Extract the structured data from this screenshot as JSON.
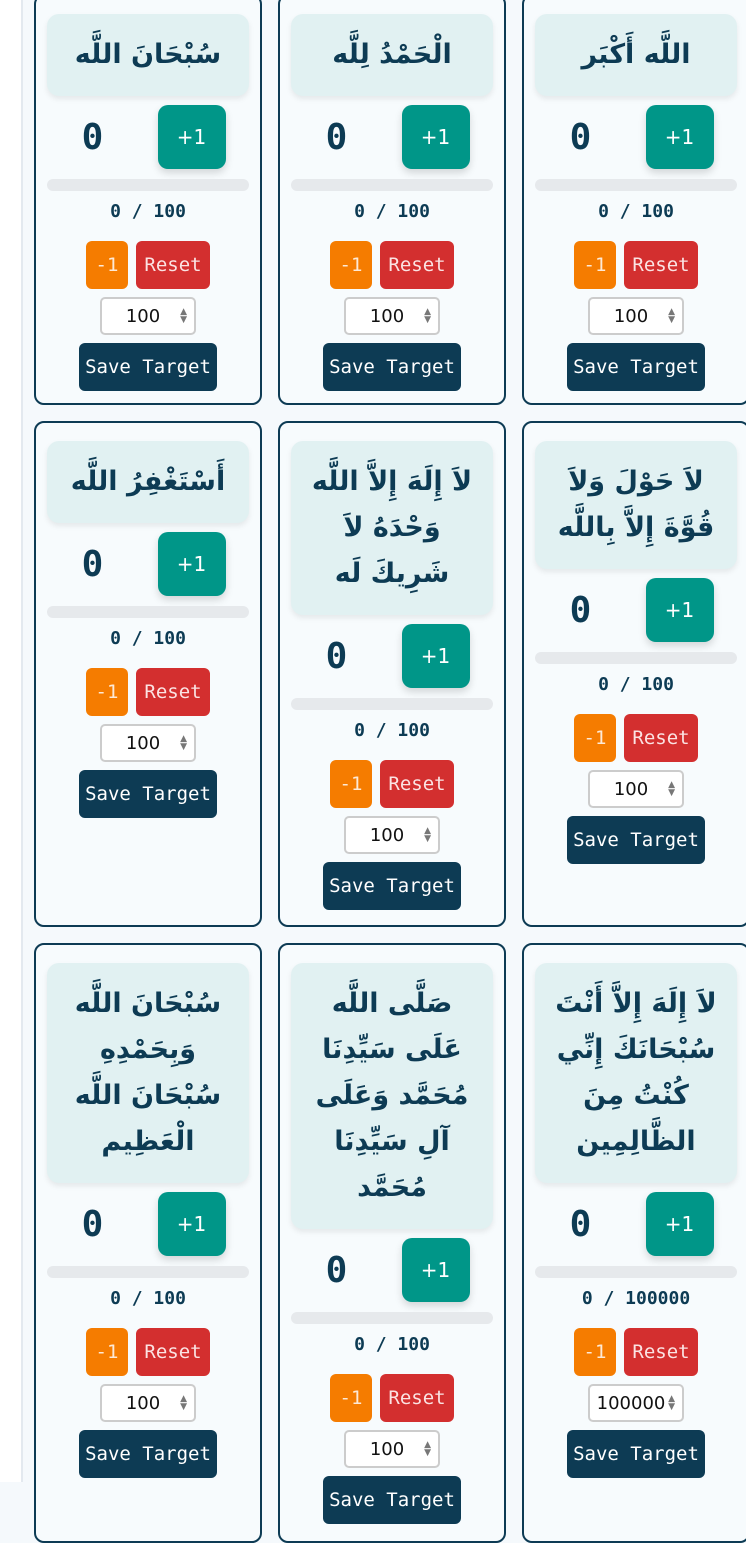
{
  "colors": {
    "primary": "#0d3b54",
    "increment": "#009688",
    "decrement": "#f57c00",
    "reset": "#d32f2f",
    "title_bg": "#e1f1f2"
  },
  "labels": {
    "increment": "+1",
    "decrement": "-1",
    "reset": "Reset",
    "save": "Save Target"
  },
  "cards": [
    {
      "title": "سُبْحَانَ اللَّه",
      "count": "0",
      "progress_text": "0 / 100",
      "target": "100",
      "progress": 0
    },
    {
      "title": "الْحَمْدُ لِلَّه",
      "count": "0",
      "progress_text": "0 / 100",
      "target": "100",
      "progress": 0
    },
    {
      "title": "اللَّه أَكْبَر",
      "count": "0",
      "progress_text": "0 / 100",
      "target": "100",
      "progress": 0
    },
    {
      "title": "أَسْتَغْفِرُ اللَّه",
      "count": "0",
      "progress_text": "0 / 100",
      "target": "100",
      "progress": 0
    },
    {
      "title": "لاَ إِلَهَ إِلاَّ اللَّه وَحْدَهُ لاَ شَرِيكَ لَه",
      "count": "0",
      "progress_text": "0 / 100",
      "target": "100",
      "progress": 0
    },
    {
      "title": "لاَ حَوْلَ وَلاَ قُوَّةَ إِلاَّ بِاللَّه",
      "count": "0",
      "progress_text": "0 / 100",
      "target": "100",
      "progress": 0
    },
    {
      "title": "سُبْحَانَ اللَّه وَبِحَمْدِهِ سُبْحَانَ اللَّه الْعَظِيم",
      "count": "0",
      "progress_text": "0 / 100",
      "target": "100",
      "progress": 0
    },
    {
      "title": "صَلَّى اللَّه عَلَى سَيِّدِنَا مُحَمَّد وَعَلَى آلِ سَيِّدِنَا مُحَمَّد",
      "count": "0",
      "progress_text": "0 / 100",
      "target": "100",
      "progress": 0
    },
    {
      "title": "لاَ إِلَهَ إِلاَّ أَنْتَ سُبْحَانَكَ إِنِّي كُنْتُ مِنَ الظَّالِمِين",
      "count": "0",
      "progress_text": "0 / 100000",
      "target": "100000",
      "progress": 0
    }
  ]
}
